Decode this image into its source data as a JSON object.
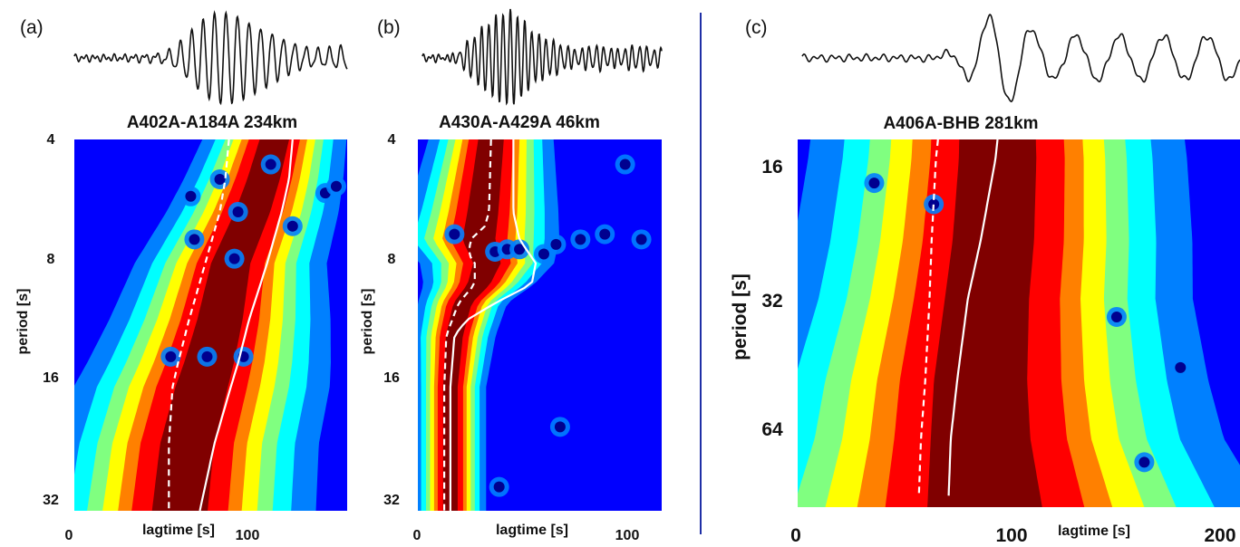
{
  "colors": {
    "colormap": [
      "#00008f",
      "#0000ff",
      "#0080ff",
      "#00ffff",
      "#80ff80",
      "#ffff00",
      "#ff8000",
      "#ff0000",
      "#800000"
    ],
    "curve": "#ffffff",
    "separator": "#1f2fa6"
  },
  "chart_data": [
    {
      "type": "heatmap",
      "panel": "(a)",
      "title": "A402A-A184A 234km",
      "xlabel": "lagtime [s]",
      "ylabel": "period [s]",
      "xticks": [
        "0",
        "100"
      ],
      "yticks": [
        "4",
        "8",
        "16",
        "32"
      ],
      "xlim": [
        0,
        150
      ],
      "ylim": [
        4,
        32
      ],
      "log_y": true,
      "ridge": [
        [
          4,
          110
        ],
        [
          5,
          104
        ],
        [
          6,
          98
        ],
        [
          8,
          86
        ],
        [
          11,
          80
        ],
        [
          14,
          74
        ],
        [
          16,
          70
        ],
        [
          22,
          62
        ],
        [
          32,
          58
        ]
      ],
      "ridge_width": [
        [
          4,
          18
        ],
        [
          8,
          24
        ],
        [
          16,
          32
        ],
        [
          32,
          34
        ]
      ],
      "dots": [
        [
          53,
          13.5
        ],
        [
          73,
          13.5
        ],
        [
          93,
          13.5
        ],
        [
          66,
          7.0
        ],
        [
          64,
          5.5
        ],
        [
          80,
          5.0
        ],
        [
          90,
          6.0
        ],
        [
          88,
          7.8
        ],
        [
          108,
          4.6
        ],
        [
          138,
          5.4
        ],
        [
          144,
          5.2
        ],
        [
          120,
          6.5
        ]
      ],
      "group_curve": [
        [
          4,
          85
        ],
        [
          5,
          83
        ],
        [
          6,
          80
        ],
        [
          8,
          72
        ],
        [
          11,
          63
        ],
        [
          14,
          57
        ],
        [
          16,
          54
        ],
        [
          22,
          52
        ],
        [
          32,
          52
        ]
      ],
      "phase_curve": [
        [
          4,
          120
        ],
        [
          5,
          118
        ],
        [
          6,
          114
        ],
        [
          8,
          106
        ],
        [
          11,
          96
        ],
        [
          14,
          90
        ],
        [
          16,
          86
        ],
        [
          22,
          77
        ],
        [
          32,
          69
        ]
      ],
      "waveform": {
        "n": 20,
        "center": 0.55,
        "width": 0.16,
        "period": 0.042,
        "amp": 1.0
      }
    },
    {
      "type": "heatmap",
      "panel": "(b)",
      "title": "A430A-A429A 46km",
      "xlabel": "lagtime [s]",
      "ylabel": "period [s]",
      "xticks": [
        "0",
        "100"
      ],
      "yticks": [
        "4",
        "8",
        "16",
        "32"
      ],
      "xlim": [
        0,
        120
      ],
      "ylim": [
        4,
        32
      ],
      "log_y": true,
      "ridge": [
        [
          4,
          36
        ],
        [
          6,
          32
        ],
        [
          7,
          30
        ],
        [
          8,
          34
        ],
        [
          9,
          30
        ],
        [
          10,
          22
        ],
        [
          12,
          18
        ],
        [
          16,
          16
        ],
        [
          32,
          16
        ]
      ],
      "ridge_width": [
        [
          4,
          14
        ],
        [
          7,
          18
        ],
        [
          10,
          10
        ],
        [
          16,
          8
        ],
        [
          32,
          8
        ]
      ],
      "dots": [
        [
          38,
          7.5
        ],
        [
          44,
          7.4
        ],
        [
          50,
          7.4
        ],
        [
          62,
          7.6
        ],
        [
          68,
          7.2
        ],
        [
          80,
          7.0
        ],
        [
          92,
          6.8
        ],
        [
          110,
          7.0
        ],
        [
          18,
          6.8
        ],
        [
          40,
          28
        ],
        [
          70,
          20
        ],
        [
          102,
          4.6
        ]
      ],
      "group_curve": [
        [
          4,
          36
        ],
        [
          6,
          35
        ],
        [
          6.5,
          33
        ],
        [
          7,
          26
        ],
        [
          7.6,
          25
        ],
        [
          8,
          28
        ],
        [
          9,
          28
        ],
        [
          10,
          20
        ],
        [
          12,
          14
        ],
        [
          16,
          13
        ],
        [
          32,
          13
        ]
      ],
      "phase_curve": [
        [
          4,
          47
        ],
        [
          6,
          47
        ],
        [
          7,
          50
        ],
        [
          8,
          58
        ],
        [
          9,
          56
        ],
        [
          10,
          38
        ],
        [
          11,
          24
        ],
        [
          12,
          18
        ],
        [
          16,
          16
        ],
        [
          32,
          16
        ]
      ],
      "waveform": {
        "n": 24,
        "center": 0.34,
        "width": 0.14,
        "period": 0.03,
        "amp": 1.0
      }
    },
    {
      "type": "heatmap",
      "panel": "(c)",
      "title": "A406A-BHB 281km",
      "xlabel": "lagtime [s]",
      "ylabel": "period [s]",
      "xticks": [
        "0",
        "100",
        "200"
      ],
      "yticks": [
        "16",
        "32",
        "64"
      ],
      "xlim": [
        0,
        208
      ],
      "ylim": [
        14.5,
        90
      ],
      "log_y": true,
      "ridge": [
        [
          14.5,
          94
        ],
        [
          16,
          94
        ],
        [
          24,
          92
        ],
        [
          32,
          89
        ],
        [
          48,
          86
        ],
        [
          64,
          86
        ],
        [
          90,
          88
        ]
      ],
      "ridge_width": [
        [
          14.5,
          40
        ],
        [
          32,
          44
        ],
        [
          64,
          52
        ],
        [
          90,
          60
        ]
      ],
      "dots": [
        [
          36,
          18
        ],
        [
          150,
          35
        ],
        [
          163,
          72
        ],
        [
          180,
          45
        ],
        [
          64,
          20
        ]
      ],
      "group_curve": [
        [
          14.5,
          66
        ],
        [
          16,
          65
        ],
        [
          24,
          63
        ],
        [
          32,
          62
        ],
        [
          48,
          60
        ],
        [
          64,
          58
        ],
        [
          85,
          57
        ]
      ],
      "phase_curve": [
        [
          14.5,
          94
        ],
        [
          16,
          93
        ],
        [
          24,
          86
        ],
        [
          32,
          80
        ],
        [
          48,
          75
        ],
        [
          64,
          72
        ],
        [
          85,
          71
        ]
      ],
      "waveform": {
        "n": 30,
        "center": 0.45,
        "width": 0.08,
        "period": 0.1,
        "amp": 1.0
      }
    }
  ]
}
